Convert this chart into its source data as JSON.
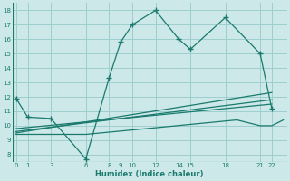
{
  "xlabel": "Humidex (Indice chaleur)",
  "bg_color": "#cce8e8",
  "line_color": "#1a7a6e",
  "grid_color": "#9ecece",
  "xticks": [
    0,
    1,
    3,
    6,
    8,
    9,
    10,
    12,
    14,
    15,
    18,
    21,
    22
  ],
  "yticks": [
    8,
    9,
    10,
    11,
    12,
    13,
    14,
    15,
    16,
    17,
    18
  ],
  "xlim": [
    -0.3,
    23.3
  ],
  "ylim": [
    7.5,
    18.5
  ],
  "line1_x": [
    0,
    1,
    3,
    6,
    8,
    9,
    10,
    12,
    14,
    15,
    18,
    21,
    22
  ],
  "line1_y": [
    11.9,
    10.6,
    10.5,
    7.7,
    13.3,
    15.8,
    17.0,
    18.0,
    16.0,
    15.3,
    17.5,
    15.0,
    11.2
  ],
  "line2_x": [
    0,
    22
  ],
  "line2_y": [
    9.8,
    11.5
  ],
  "line3_x": [
    0,
    22
  ],
  "line3_y": [
    9.6,
    11.8
  ],
  "line4_x": [
    0,
    22
  ],
  "line4_y": [
    9.5,
    12.3
  ],
  "line5_x": [
    0,
    3,
    6,
    19,
    21,
    22,
    23
  ],
  "line5_y": [
    9.4,
    9.4,
    9.4,
    10.4,
    10.0,
    10.0,
    10.4
  ]
}
